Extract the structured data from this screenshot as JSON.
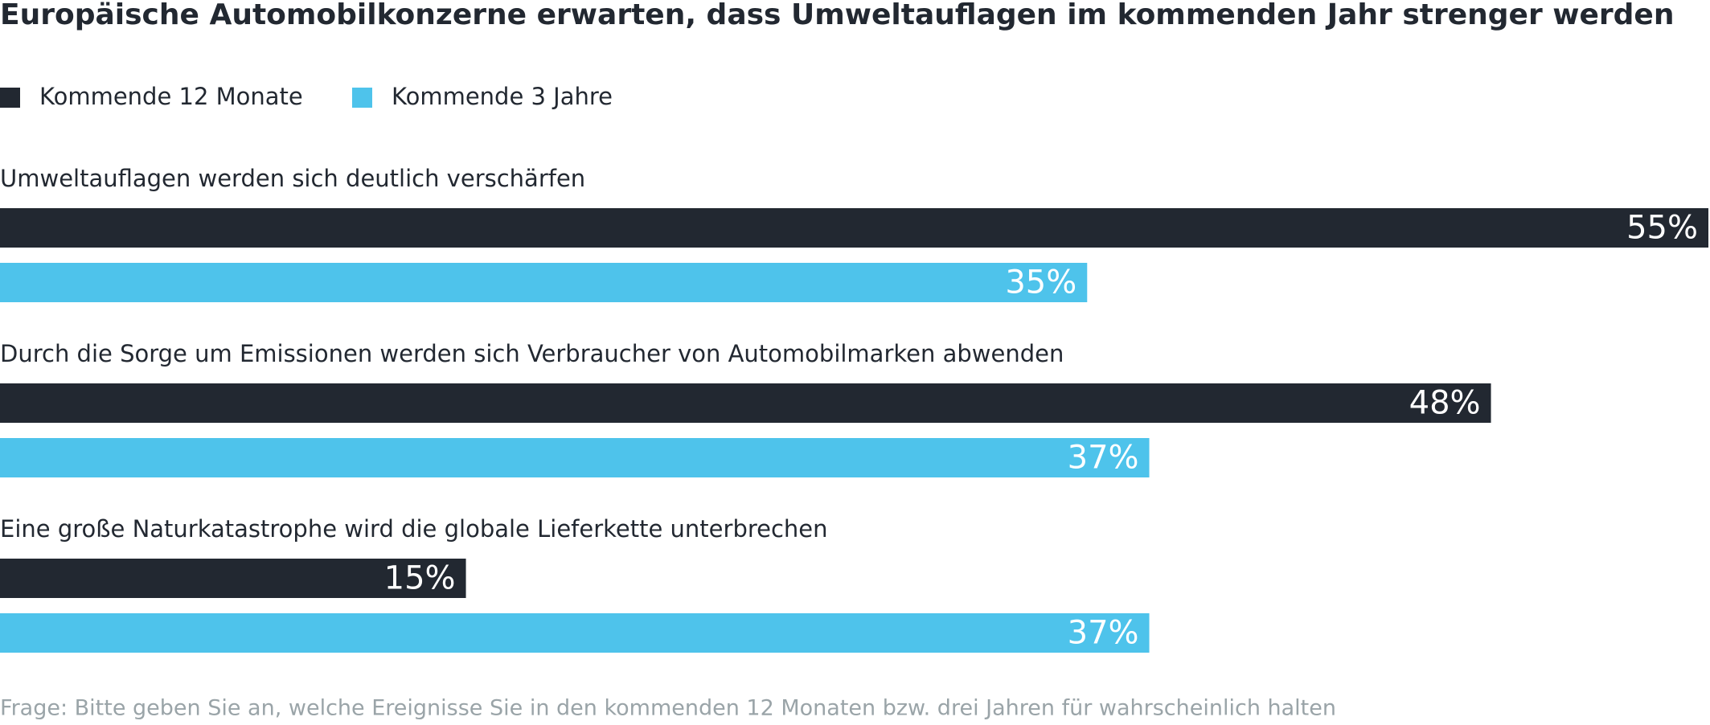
{
  "chart_data": {
    "type": "bar",
    "title": "Europäische Automobilkonzerne erwarten, dass Umweltauflagen im kommenden Jahr strenger werden",
    "categories": [
      "Umweltauflagen werden sich deutlich verschärfen",
      "Durch die Sorge um Emissionen werden sich Verbraucher von Automobilmarken abwenden",
      "Eine große Naturkatastrophe wird die globale Lieferkette unterbrechen"
    ],
    "series": [
      {
        "name": "Kommende 12 Monate",
        "color": "#222831",
        "values": [
          55,
          48,
          15
        ],
        "value_labels": [
          "55%",
          "48%",
          "15%"
        ]
      },
      {
        "name": "Kommende 3 Jahre",
        "color": "#4ec3eb",
        "values": [
          35,
          37,
          37
        ],
        "value_labels": [
          "35%",
          "37%",
          "37%"
        ]
      }
    ],
    "footnote": "Frage: Bitte geben Sie an, welche Ereignisse Sie in den kommenden 12 Monaten bzw. drei Jahren für wahrscheinlich halten"
  }
}
